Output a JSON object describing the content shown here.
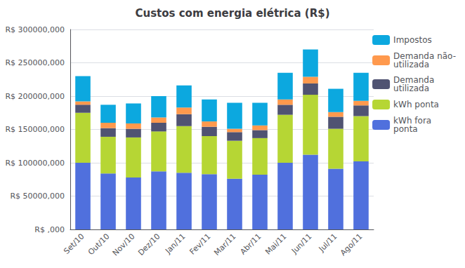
{
  "chart_data": {
    "type": "bar",
    "stacked": true,
    "title": "Custos com energia elétrica (R$)",
    "categories": [
      "Set/10",
      "Out/10",
      "Nov/10",
      "Dez/10",
      "Jan/11",
      "Fev/11",
      "Mar/11",
      "Abr/11",
      "Mai/11",
      "Jun/11",
      "Jul/11",
      "Ago/11"
    ],
    "series": [
      {
        "name": "kWh fora\nponta",
        "values": [
          100000000,
          84000000,
          78000000,
          87000000,
          85000000,
          83000000,
          76000000,
          82000000,
          100000000,
          112000000,
          91000000,
          102000000
        ]
      },
      {
        "name": "kWh ponta",
        "values": [
          75000000,
          55000000,
          60000000,
          60000000,
          70000000,
          57000000,
          57000000,
          55000000,
          72000000,
          90000000,
          60000000,
          68000000
        ]
      },
      {
        "name": "Demanda\nutilizada",
        "values": [
          12000000,
          13000000,
          13000000,
          13000000,
          18000000,
          14000000,
          13000000,
          12000000,
          15000000,
          17000000,
          18000000,
          16000000
        ]
      },
      {
        "name": "Demanda não-\nutilizada",
        "values": [
          5000000,
          8000000,
          8000000,
          8000000,
          10000000,
          8000000,
          5000000,
          7000000,
          8000000,
          10000000,
          7000000,
          7000000
        ]
      },
      {
        "name": "Impostos",
        "values": [
          38000000,
          27000000,
          30000000,
          32000000,
          33000000,
          33000000,
          39000000,
          34000000,
          40000000,
          41000000,
          35000000,
          42000000
        ]
      }
    ],
    "ylim": [
      0,
      300000000
    ],
    "yticks": [
      {
        "value": 0,
        "label": "R$ ,000"
      },
      {
        "value": 50000000,
        "label": "R$ 50000,000"
      },
      {
        "value": 100000000,
        "label": "R$ 100000,000"
      },
      {
        "value": 150000000,
        "label": "R$ 150000,000"
      },
      {
        "value": 200000000,
        "label": "R$ 200000,000"
      },
      {
        "value": 250000000,
        "label": "R$ 250000,000"
      },
      {
        "value": 300000000,
        "label": "R$ 300000,000"
      }
    ],
    "grid": true,
    "legend": "right"
  }
}
